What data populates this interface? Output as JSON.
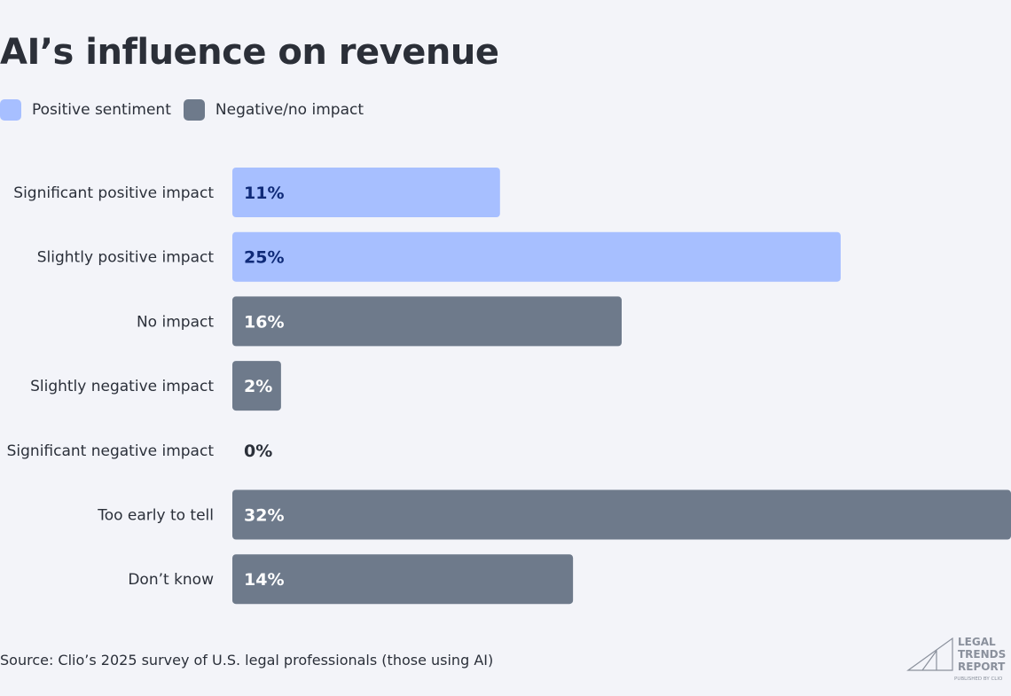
{
  "chart_data": {
    "type": "bar",
    "orientation": "horizontal",
    "title": "AI’s influence on revenue",
    "categories": [
      "Significant positive impact",
      "Slightly positive impact",
      "No impact",
      "Slightly negative impact",
      "Significant negative impact",
      "Too early to tell",
      "Don’t know"
    ],
    "values": [
      11,
      25,
      16,
      2,
      0,
      32,
      14
    ],
    "value_labels": [
      "11%",
      "25%",
      "16%",
      "2%",
      "0%",
      "32%",
      "14%"
    ],
    "groups": [
      "positive",
      "positive",
      "negative",
      "negative",
      "negative",
      "negative",
      "negative"
    ],
    "legend": [
      {
        "key": "positive",
        "name": "Positive sentiment",
        "color": "#a7bfff",
        "label_color": "#0f2a78"
      },
      {
        "key": "negative",
        "name": "Negative/no impact",
        "color": "#6e7a8b",
        "label_color": "#ffffff"
      }
    ],
    "legend_position": "top-left",
    "xlim": [
      0,
      32
    ],
    "grid": false,
    "unit": "%"
  },
  "source": "Source: Clio’s 2025 survey of U.S. legal professionals (those using AI)",
  "logo": {
    "lines": [
      "LEGAL",
      "TRENDS",
      "REPORT"
    ],
    "sub": "PUBLISHED BY CLIO"
  }
}
